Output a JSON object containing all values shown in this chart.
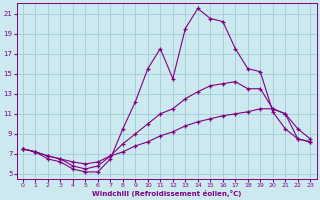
{
  "xlabel": "Windchill (Refroidissement éolien,°C)",
  "xlim": [
    -0.5,
    23.5
  ],
  "ylim": [
    4.5,
    22
  ],
  "yticks": [
    5,
    7,
    9,
    11,
    13,
    15,
    17,
    19,
    21
  ],
  "xticks": [
    0,
    1,
    2,
    3,
    4,
    5,
    6,
    7,
    8,
    9,
    10,
    11,
    12,
    13,
    14,
    15,
    16,
    17,
    18,
    19,
    20,
    21,
    22,
    23
  ],
  "bg_color": "#cde9f0",
  "line_color": "#800080",
  "grid_color": "#a0ccd8",
  "line1_y": [
    7.5,
    7.2,
    6.5,
    6.2,
    5.5,
    5.2,
    5.2,
    6.5,
    9.5,
    12.2,
    15.5,
    17.5,
    14.5,
    19.5,
    21.5,
    20.5,
    20.2,
    17.5,
    15.5,
    15.2,
    11.2,
    9.5,
    8.5,
    8.2
  ],
  "line2_y": [
    7.5,
    7.2,
    6.8,
    6.5,
    5.8,
    5.5,
    5.8,
    6.8,
    8.0,
    9.0,
    10.0,
    11.0,
    11.5,
    12.5,
    13.2,
    13.8,
    14.0,
    14.2,
    13.5,
    13.5,
    11.5,
    11.0,
    9.5,
    8.5
  ],
  "line3_y": [
    7.5,
    7.2,
    6.8,
    6.5,
    6.2,
    6.0,
    6.2,
    6.8,
    7.2,
    7.8,
    8.2,
    8.8,
    9.2,
    9.8,
    10.2,
    10.5,
    10.8,
    11.0,
    11.2,
    11.5,
    11.5,
    11.0,
    8.5,
    8.2
  ]
}
